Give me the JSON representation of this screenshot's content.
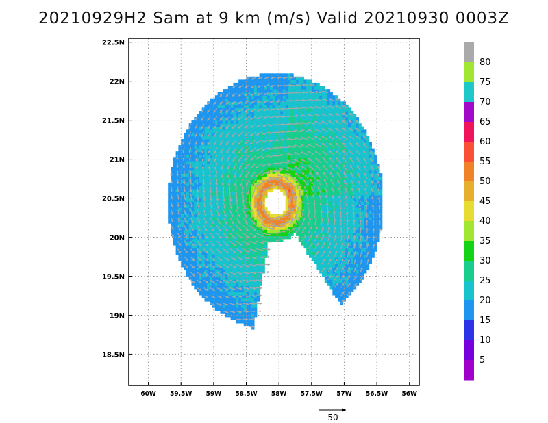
{
  "title": "20210929H2 Sam at 9 km (m/s) Valid 20210930  0003Z",
  "chart_data": {
    "type": "heatmap",
    "subtype": "wind-speed-with-vectors",
    "title": "20210929H2 Sam at 9 km (m/s) Valid 20210930  0003Z",
    "units": "m/s",
    "x_axis": {
      "ticks": [
        {
          "value": -60.0,
          "label": "60W"
        },
        {
          "value": -59.5,
          "label": "59.5W"
        },
        {
          "value": -59.0,
          "label": "59W"
        },
        {
          "value": -58.5,
          "label": "58.5W"
        },
        {
          "value": -58.0,
          "label": "58W"
        },
        {
          "value": -57.5,
          "label": "57.5W"
        },
        {
          "value": -57.0,
          "label": "57W"
        },
        {
          "value": -56.5,
          "label": "56.5W"
        },
        {
          "value": -56.0,
          "label": "56W"
        }
      ],
      "range": [
        -60.3,
        -55.85
      ]
    },
    "y_axis": {
      "ticks": [
        {
          "value": 18.5,
          "label": "18.5N"
        },
        {
          "value": 19.0,
          "label": "19N"
        },
        {
          "value": 19.5,
          "label": "19.5N"
        },
        {
          "value": 20.0,
          "label": "20N"
        },
        {
          "value": 20.5,
          "label": "20.5N"
        },
        {
          "value": 21.0,
          "label": "21N"
        },
        {
          "value": 21.5,
          "label": "21.5N"
        },
        {
          "value": 22.0,
          "label": "22N"
        },
        {
          "value": 22.5,
          "label": "22.5N"
        }
      ],
      "range": [
        18.1,
        22.55
      ]
    },
    "grid": true,
    "storm_center": {
      "lon": -58.05,
      "lat": 20.45
    },
    "eye_radius_deg": 0.16,
    "colorbar": {
      "labels": [
        "5",
        "10",
        "15",
        "20",
        "25",
        "30",
        "35",
        "40",
        "45",
        "50",
        "55",
        "60",
        "65",
        "70",
        "75",
        "80"
      ],
      "colors": [
        "#a000c8",
        "#7800dc",
        "#2d33e6",
        "#1e96f0",
        "#19c3cd",
        "#19cd8c",
        "#14d214",
        "#a0e632",
        "#e6dc32",
        "#e6af2d",
        "#f08228",
        "#fa5037",
        "#f0145a",
        "#a00ac8",
        "#1ec8c8",
        "#a0e632",
        "#aaaaaa"
      ]
    },
    "reference_vector": {
      "value": 50,
      "label": "50"
    }
  }
}
